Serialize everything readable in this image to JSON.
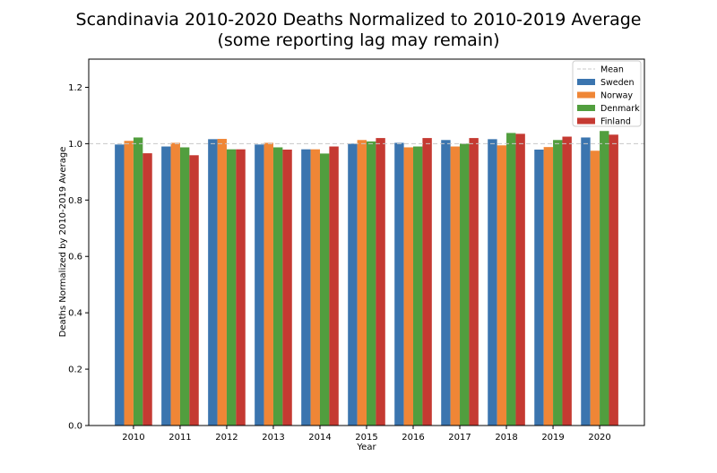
{
  "chart_data": {
    "type": "bar",
    "title": "Scandinavia 2010-2020 Deaths Normalized to 2010-2019 Average",
    "subtitle": "(some reporting lag may remain)",
    "xlabel": "Year",
    "ylabel": "Deaths Normalized by 2010-2019 Average",
    "ylim": [
      0,
      1.3
    ],
    "yticks": [
      "0.0",
      "0.2",
      "0.4",
      "0.6",
      "0.8",
      "1.0",
      "1.2"
    ],
    "categories": [
      "2010",
      "2011",
      "2012",
      "2013",
      "2014",
      "2015",
      "2016",
      "2017",
      "2018",
      "2019",
      "2020"
    ],
    "mean_line": {
      "name": "Mean",
      "value": 1.0,
      "color": "#c8c8c8"
    },
    "series": [
      {
        "name": "Sweden",
        "color": "#3b75af",
        "values": [
          0.997,
          0.99,
          1.016,
          0.997,
          0.98,
          1.0,
          1.003,
          1.013,
          1.016,
          0.979,
          1.022
        ]
      },
      {
        "name": "Norway",
        "color": "#ef8636",
        "values": [
          1.01,
          1.003,
          1.017,
          1.003,
          0.98,
          1.013,
          0.987,
          0.99,
          0.994,
          0.988,
          0.975
        ]
      },
      {
        "name": "Denmark",
        "color": "#519e3e",
        "values": [
          1.022,
          0.987,
          0.98,
          0.987,
          0.965,
          1.008,
          0.99,
          1.0,
          1.038,
          1.013,
          1.045
        ]
      },
      {
        "name": "Finland",
        "color": "#c53a32",
        "values": [
          0.966,
          0.959,
          0.98,
          0.979,
          0.99,
          1.02,
          1.02,
          1.02,
          1.035,
          1.025,
          1.032
        ]
      }
    ],
    "grid": false,
    "legend": "top-right"
  }
}
